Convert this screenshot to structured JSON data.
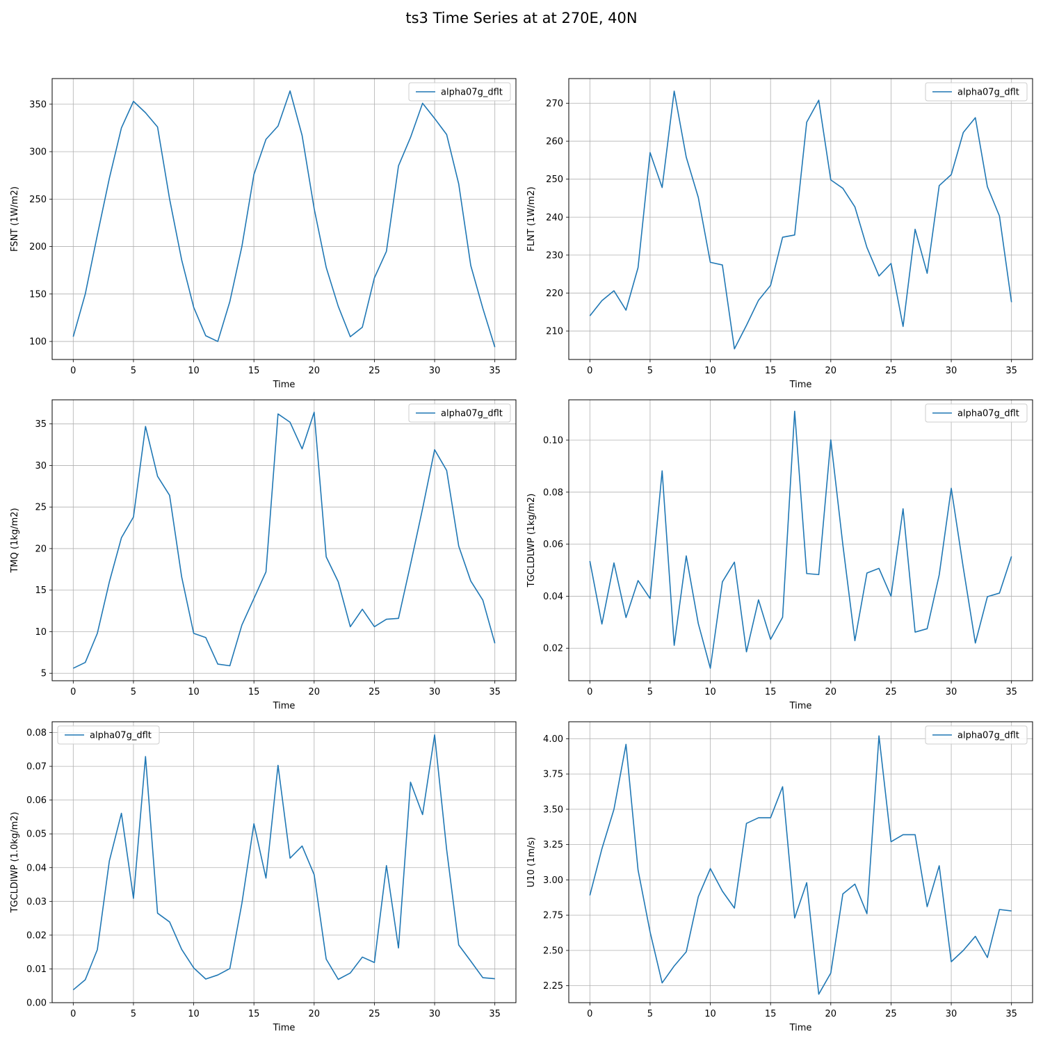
{
  "figure": {
    "title": "ts3 Time Series at at 270E, 40N"
  },
  "style": {
    "line_color": "#1f77b4",
    "grid_color": "#b0b0b0"
  },
  "chart_data": [
    {
      "type": "line",
      "xlabel": "Time",
      "ylabel": "FSNT (1W/m2)",
      "xlim": [
        -1.75,
        36.75
      ],
      "ylim": [
        81,
        377
      ],
      "xticks": [
        0,
        5,
        10,
        15,
        20,
        25,
        30,
        35
      ],
      "yticks": [
        100,
        150,
        200,
        250,
        300,
        350
      ],
      "grid": true,
      "legend": "upper right",
      "series": [
        {
          "name": "alpha07g_dflt",
          "x": [
            0,
            1,
            2,
            3,
            4,
            5,
            6,
            7,
            8,
            9,
            10,
            11,
            12,
            13,
            14,
            15,
            16,
            17,
            18,
            19,
            20,
            21,
            22,
            23,
            24,
            25,
            26,
            27,
            28,
            29,
            30,
            31,
            32,
            33,
            34,
            35
          ],
          "values": [
            105,
            150,
            212,
            272,
            325,
            353,
            341,
            326,
            250,
            186,
            136,
            106,
            100,
            142,
            200,
            276,
            313,
            327,
            364,
            317,
            240,
            178,
            137,
            105,
            115,
            167,
            195,
            285,
            315,
            351,
            335,
            318,
            266,
            180,
            135,
            94
          ]
        }
      ]
    },
    {
      "type": "line",
      "xlabel": "Time",
      "ylabel": "FLNT (1W/m2)",
      "xlim": [
        -1.75,
        36.75
      ],
      "ylim": [
        202.5,
        276.5
      ],
      "xticks": [
        0,
        5,
        10,
        15,
        20,
        25,
        30,
        35
      ],
      "yticks": [
        210,
        220,
        230,
        240,
        250,
        260,
        270
      ],
      "grid": true,
      "legend": "upper right",
      "series": [
        {
          "name": "alpha07g_dflt",
          "x": [
            0,
            1,
            2,
            3,
            4,
            5,
            6,
            7,
            8,
            9,
            10,
            11,
            12,
            13,
            14,
            15,
            16,
            17,
            18,
            19,
            20,
            21,
            22,
            23,
            24,
            25,
            26,
            27,
            28,
            29,
            30,
            31,
            32,
            33,
            34,
            35
          ],
          "values": [
            214,
            218,
            220.6,
            215.5,
            226.7,
            257,
            247.8,
            273.2,
            255.8,
            245.2,
            228.1,
            227.4,
            205.3,
            211.5,
            218.1,
            222,
            234.7,
            235.3,
            265,
            270.8,
            249.8,
            247.6,
            242.7,
            232,
            224.5,
            227.8,
            211.2,
            236.8,
            225.2,
            248.3,
            251.2,
            262.3,
            266.2,
            248,
            240.3,
            217.6
          ]
        }
      ]
    },
    {
      "type": "line",
      "xlabel": "Time",
      "ylabel": "TMQ (1kg/m2)",
      "xlim": [
        -1.75,
        36.75
      ],
      "ylim": [
        4.1,
        37.9
      ],
      "xticks": [
        0,
        5,
        10,
        15,
        20,
        25,
        30,
        35
      ],
      "yticks": [
        5,
        10,
        15,
        20,
        25,
        30,
        35
      ],
      "grid": true,
      "legend": "upper right",
      "series": [
        {
          "name": "alpha07g_dflt",
          "x": [
            0,
            1,
            2,
            3,
            4,
            5,
            6,
            7,
            8,
            9,
            10,
            11,
            12,
            13,
            14,
            15,
            16,
            17,
            18,
            19,
            20,
            21,
            22,
            23,
            24,
            25,
            26,
            27,
            28,
            29,
            30,
            31,
            32,
            33,
            34,
            35
          ],
          "values": [
            5.6,
            6.3,
            9.8,
            16,
            21.3,
            23.8,
            34.7,
            28.7,
            26.4,
            16.6,
            9.8,
            9.3,
            6.1,
            5.9,
            10.8,
            14,
            17.2,
            36.2,
            35.2,
            32,
            36.4,
            19,
            16,
            10.6,
            12.7,
            10.6,
            11.5,
            11.6,
            18.1,
            24.8,
            31.9,
            29.4,
            20.3,
            16.1,
            13.8,
            8.6
          ]
        }
      ]
    },
    {
      "type": "line",
      "xlabel": "Time",
      "ylabel": "TGCLDLWP (1kg/m2)",
      "xlim": [
        -1.75,
        36.75
      ],
      "ylim": [
        0.0075,
        0.1155
      ],
      "xticks": [
        0,
        5,
        10,
        15,
        20,
        25,
        30,
        35
      ],
      "yticks": [
        0.02,
        0.04,
        0.06,
        0.08,
        0.1
      ],
      "ytick_labels": [
        "0.02",
        "0.04",
        "0.06",
        "0.08",
        "0.10"
      ],
      "grid": true,
      "legend": "upper right",
      "series": [
        {
          "name": "alpha07g_dflt",
          "x": [
            0,
            1,
            2,
            3,
            4,
            5,
            6,
            7,
            8,
            9,
            10,
            11,
            12,
            13,
            14,
            15,
            16,
            17,
            18,
            19,
            20,
            21,
            22,
            23,
            24,
            25,
            26,
            27,
            28,
            29,
            30,
            31,
            32,
            33,
            34,
            35
          ],
          "values": [
            0.0535,
            0.0293,
            0.0528,
            0.0318,
            0.046,
            0.0391,
            0.0882,
            0.0211,
            0.0555,
            0.0295,
            0.0123,
            0.0455,
            0.0531,
            0.0186,
            0.0386,
            0.0234,
            0.0319,
            0.1111,
            0.0487,
            0.0483,
            0.1001,
            0.0598,
            0.0229,
            0.0489,
            0.0507,
            0.04,
            0.0736,
            0.0262,
            0.0275,
            0.0482,
            0.0815,
            0.0509,
            0.022,
            0.0398,
            0.0412,
            0.0553
          ]
        }
      ]
    },
    {
      "type": "line",
      "xlabel": "Time",
      "ylabel": "TGCLDIWP (1.0kg/m2)",
      "xlim": [
        -1.75,
        36.75
      ],
      "ylim": [
        0,
        0.0832
      ],
      "xticks": [
        0,
        5,
        10,
        15,
        20,
        25,
        30,
        35
      ],
      "yticks": [
        0,
        0.01,
        0.02,
        0.03,
        0.04,
        0.05,
        0.06,
        0.07,
        0.08
      ],
      "ytick_labels": [
        "0.00",
        "0.01",
        "0.02",
        "0.03",
        "0.04",
        "0.05",
        "0.06",
        "0.07",
        "0.08"
      ],
      "grid": true,
      "legend": "upper left",
      "series": [
        {
          "name": "alpha07g_dflt",
          "x": [
            0,
            1,
            2,
            3,
            4,
            5,
            6,
            7,
            8,
            9,
            10,
            11,
            12,
            13,
            14,
            15,
            16,
            17,
            18,
            19,
            20,
            21,
            22,
            23,
            24,
            25,
            26,
            27,
            28,
            29,
            30,
            31,
            32,
            33,
            34,
            35
          ],
          "values": [
            0.0038,
            0.0068,
            0.0157,
            0.042,
            0.0561,
            0.0309,
            0.0729,
            0.0265,
            0.0239,
            0.0158,
            0.0103,
            0.007,
            0.0082,
            0.0101,
            0.0294,
            0.053,
            0.0369,
            0.0703,
            0.0428,
            0.0464,
            0.0379,
            0.0129,
            0.0069,
            0.0088,
            0.0135,
            0.0119,
            0.0406,
            0.0162,
            0.0653,
            0.0557,
            0.0793,
            0.0453,
            0.0171,
            0.0123,
            0.0074,
            0.0071
          ]
        }
      ]
    },
    {
      "type": "line",
      "xlabel": "Time",
      "ylabel": "U10 (1m/s)",
      "xlim": [
        -1.75,
        36.75
      ],
      "ylim": [
        2.13,
        4.12
      ],
      "xticks": [
        0,
        5,
        10,
        15,
        20,
        25,
        30,
        35
      ],
      "yticks": [
        2.25,
        2.5,
        2.75,
        3.0,
        3.25,
        3.5,
        3.75,
        4.0
      ],
      "ytick_labels": [
        "2.25",
        "2.50",
        "2.75",
        "3.00",
        "3.25",
        "3.50",
        "3.75",
        "4.00"
      ],
      "grid": true,
      "legend": "upper right",
      "series": [
        {
          "name": "alpha07g_dflt",
          "x": [
            0,
            1,
            2,
            3,
            4,
            5,
            6,
            7,
            8,
            9,
            10,
            11,
            12,
            13,
            14,
            15,
            16,
            17,
            18,
            19,
            20,
            21,
            22,
            23,
            24,
            25,
            26,
            27,
            28,
            29,
            30,
            31,
            32,
            33,
            34,
            35
          ],
          "values": [
            2.89,
            3.22,
            3.5,
            3.96,
            3.07,
            2.63,
            2.27,
            2.39,
            2.49,
            2.88,
            3.08,
            2.92,
            2.8,
            3.4,
            3.44,
            3.44,
            3.66,
            2.73,
            2.98,
            2.19,
            2.34,
            2.9,
            2.97,
            2.76,
            4.02,
            3.27,
            3.32,
            3.32,
            2.81,
            3.1,
            2.42,
            2.5,
            2.6,
            2.45,
            2.79,
            2.78
          ]
        }
      ]
    }
  ]
}
